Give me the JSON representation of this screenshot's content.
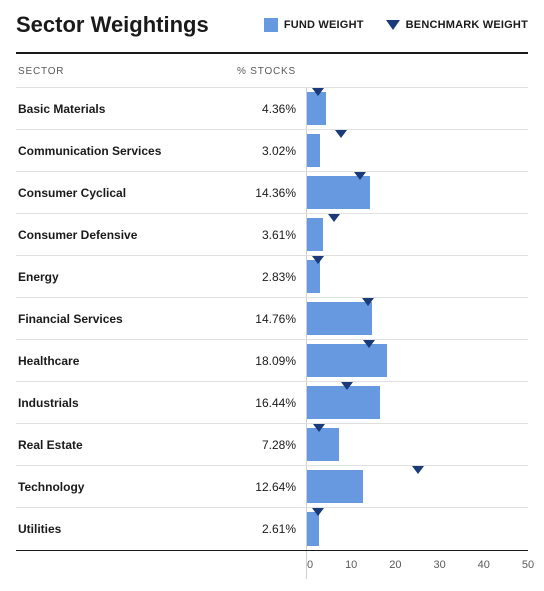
{
  "title": "Sector Weightings",
  "legend": {
    "fund_label": "FUND WEIGHT",
    "benchmark_label": "BENCHMARK WEIGHT",
    "fund_color": "#6699e0",
    "benchmark_color": "#1a3a7a"
  },
  "columns": {
    "sector": "SECTOR",
    "stocks": "% STOCKS"
  },
  "chart": {
    "type": "bar",
    "xmax": 50,
    "ticks": [
      0,
      10,
      20,
      30,
      40,
      50
    ],
    "bar_color": "#6699e0",
    "benchmark_color": "#1a3a7a",
    "grid_color": "#e0e0e0",
    "axis_color": "#cfcfcf",
    "text_color": "#1a1a1a",
    "muted_text_color": "#595959",
    "background_color": "#ffffff"
  },
  "rows": [
    {
      "name": "Basic Materials",
      "value_label": "4.36%",
      "fund": 4.36,
      "benchmark": 2.4
    },
    {
      "name": "Communication Services",
      "value_label": "3.02%",
      "fund": 3.02,
      "benchmark": 7.8
    },
    {
      "name": "Consumer Cyclical",
      "value_label": "14.36%",
      "fund": 14.36,
      "benchmark": 12.0
    },
    {
      "name": "Consumer Defensive",
      "value_label": "3.61%",
      "fund": 3.61,
      "benchmark": 6.2
    },
    {
      "name": "Energy",
      "value_label": "2.83%",
      "fund": 2.83,
      "benchmark": 2.5
    },
    {
      "name": "Financial Services",
      "value_label": "14.76%",
      "fund": 14.76,
      "benchmark": 13.8
    },
    {
      "name": "Healthcare",
      "value_label": "18.09%",
      "fund": 18.09,
      "benchmark": 14.0
    },
    {
      "name": "Industrials",
      "value_label": "16.44%",
      "fund": 16.44,
      "benchmark": 9.0
    },
    {
      "name": "Real Estate",
      "value_label": "7.28%",
      "fund": 7.28,
      "benchmark": 2.8
    },
    {
      "name": "Technology",
      "value_label": "12.64%",
      "fund": 12.64,
      "benchmark": 25.0
    },
    {
      "name": "Utilities",
      "value_label": "2.61%",
      "fund": 2.61,
      "benchmark": 2.6
    }
  ]
}
